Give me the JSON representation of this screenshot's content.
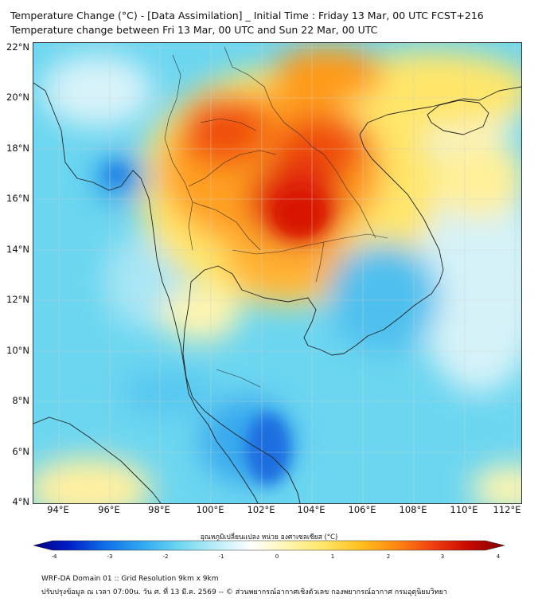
{
  "titles": {
    "line1": "Temperature Change (°C) - [Data Assimilation] _ Initial Time : Friday 13 Mar, 00 UTC FCST+216",
    "line2": "Temperature change between Fri 13 Mar, 00 UTC and Sun 22 Mar, 00 UTC"
  },
  "axes": {
    "lat_labels": [
      "22°N",
      "20°N",
      "18°N",
      "16°N",
      "14°N",
      "12°N",
      "10°N",
      "8°N",
      "6°N",
      "4°N"
    ],
    "lon_labels": [
      "94°E",
      "96°E",
      "98°E",
      "100°E",
      "102°E",
      "104°E",
      "106°E",
      "108°E",
      "110°E",
      "112°E"
    ]
  },
  "colorbar": {
    "label": "อุณหภูมิเปลี่ยนแปลง หน่วย องศาเซลเซียส (°C)",
    "ticks": [
      "-4",
      "-3",
      "-2",
      "-1",
      "0",
      "1",
      "2",
      "3",
      "4"
    ],
    "colors": [
      "#00007f",
      "#0020c8",
      "#1070e8",
      "#30a8f0",
      "#6cd6f0",
      "#b8ecf6",
      "#ffffff",
      "#fff5b0",
      "#ffe66a",
      "#ffc020",
      "#ff8a10",
      "#f04010",
      "#c80800",
      "#7f0000"
    ]
  },
  "footer": {
    "line1": "WRF-DA Domain 01 :: Grid Resolution 9km x 9km",
    "line2": "ปรับปรุงข้อมูล ณ เวลา 07:00น. วัน ศ. ที่ 13 มี.ค. 2569 -- © ส่วนพยากรณ์อากาศเชิงตัวเลข กองพยากรณ์อากาศ กรมอุตุนิยมวิทยา"
  }
}
